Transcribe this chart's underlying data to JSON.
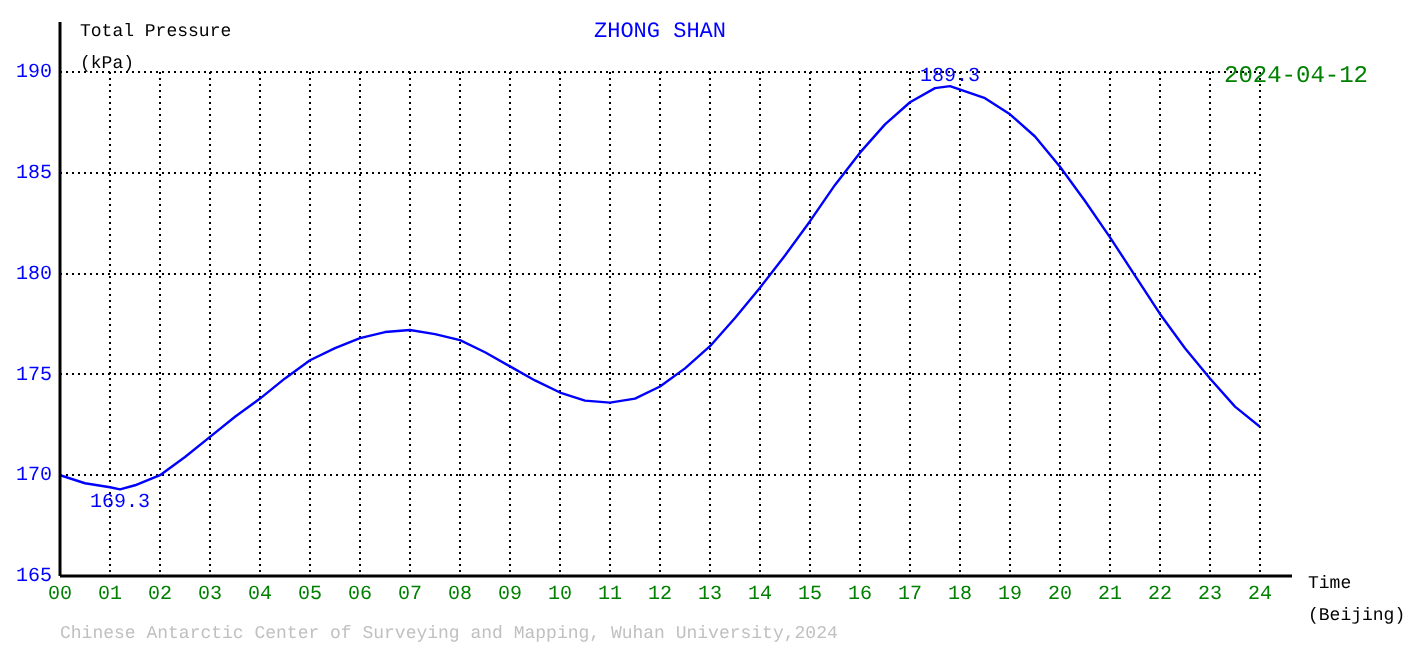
{
  "chart_data": {
    "type": "line",
    "title": "ZHONG SHAN",
    "subtitle": "2024-04-12",
    "ylabel": "Total Pressure (kPa)",
    "xlabel": "Time (Beijing)",
    "x": [
      0,
      0.5,
      1,
      1.2,
      1.5,
      2,
      2.5,
      3,
      3.5,
      4,
      4.5,
      5,
      5.5,
      6,
      6.5,
      7,
      7.5,
      8,
      8.5,
      9,
      9.5,
      10,
      10.5,
      11,
      11.5,
      12,
      12.5,
      13,
      13.5,
      14,
      14.5,
      15,
      15.5,
      16,
      16.5,
      17,
      17.5,
      17.8,
      18.5,
      19,
      19.5,
      20,
      20.5,
      21,
      21.5,
      22,
      22.5,
      23,
      23.5,
      24
    ],
    "series": [
      {
        "color": "#0000ff",
        "values": [
          170.0,
          169.6,
          169.4,
          169.3,
          169.5,
          170.0,
          170.9,
          171.9,
          172.9,
          173.8,
          174.8,
          175.7,
          176.3,
          176.8,
          177.1,
          177.2,
          177.0,
          176.7,
          176.1,
          175.4,
          174.7,
          174.1,
          173.7,
          173.6,
          173.8,
          174.4,
          175.3,
          176.4,
          177.8,
          179.3,
          180.9,
          182.6,
          184.4,
          186.0,
          187.4,
          188.5,
          189.2,
          189.3,
          188.7,
          187.9,
          186.8,
          185.3,
          183.6,
          181.8,
          179.9,
          178.0,
          176.3,
          174.8,
          173.4,
          172.4
        ]
      }
    ],
    "xlim": [
      0,
      24
    ],
    "xticks": [
      {
        "value": 0,
        "label": "00"
      },
      {
        "value": 1,
        "label": "01"
      },
      {
        "value": 2,
        "label": "02"
      },
      {
        "value": 3,
        "label": "03"
      },
      {
        "value": 4,
        "label": "04"
      },
      {
        "value": 5,
        "label": "05"
      },
      {
        "value": 6,
        "label": "06"
      },
      {
        "value": 7,
        "label": "07"
      },
      {
        "value": 8,
        "label": "08"
      },
      {
        "value": 9,
        "label": "09"
      },
      10,
      11,
      12,
      13,
      14,
      15,
      16,
      17,
      18,
      19,
      20,
      21,
      22,
      23,
      24
    ],
    "ylim": [
      165,
      190
    ],
    "yticks": [
      165,
      170,
      175,
      180,
      185,
      190
    ],
    "grid": true,
    "marker": "none",
    "line_style": "solid",
    "legend": false,
    "annotations": [
      {
        "text": "189.3",
        "x": 17.8,
        "y": 189.3
      },
      {
        "text": "169.3",
        "x": 1.2,
        "y": 169.3
      },
      "Chinese Antarctic Center of Surveying and Mapping, Wuhan University,2024"
    ]
  }
}
